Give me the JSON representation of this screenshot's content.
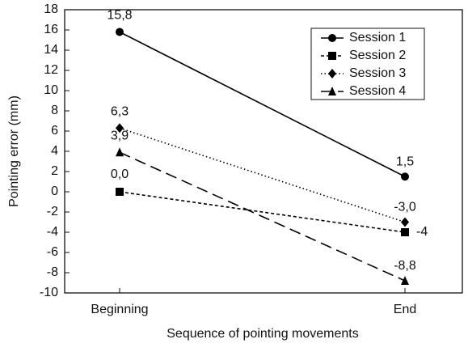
{
  "chart_data": {
    "type": "line",
    "x_label": "Sequence of pointing movements",
    "y_label": "Pointing error (mm)",
    "categories": [
      "Beginning",
      "End"
    ],
    "ylim": [
      -10,
      18
    ],
    "yticks": [
      -10,
      -8,
      -6,
      -4,
      -2,
      0,
      2,
      4,
      6,
      8,
      10,
      12,
      14,
      16,
      18
    ],
    "legend": "upper right",
    "series": [
      {
        "name": "Session 1",
        "color": "#000000",
        "marker": "circle",
        "dash": "solid",
        "values": [
          15.8,
          1.5
        ],
        "value_labels": [
          "15,8",
          "1,5"
        ]
      },
      {
        "name": "Session 2",
        "color": "#000000",
        "marker": "square",
        "dash": "dashed",
        "values": [
          0.0,
          -4
        ],
        "value_labels": [
          "0,0",
          "-4"
        ]
      },
      {
        "name": "Session 3",
        "color": "#000000",
        "marker": "diamond",
        "dash": "dotted",
        "values": [
          6.3,
          -3.0
        ],
        "value_labels": [
          "6,3",
          "-3,0"
        ]
      },
      {
        "name": "Session 4",
        "color": "#000000",
        "marker": "triangle",
        "dash": "longdash",
        "values": [
          3.9,
          -8.8
        ],
        "value_labels": [
          "3,9",
          "-8,8"
        ]
      }
    ]
  }
}
